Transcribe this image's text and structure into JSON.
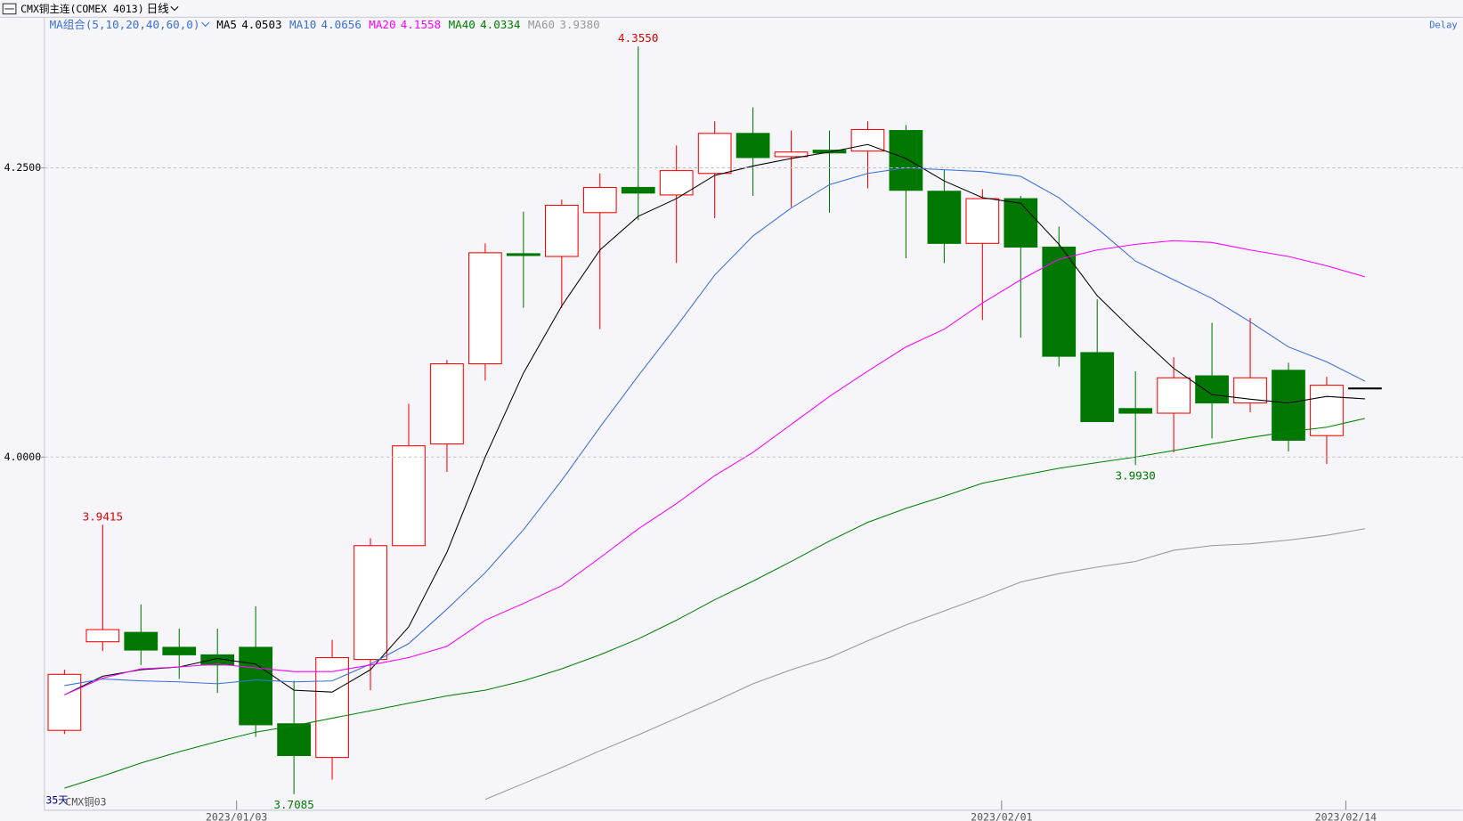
{
  "chart_data": {
    "type": "candlestick",
    "title": "CMX铜主连(COMEX 4013)",
    "period": "日线",
    "ma_label": "MA组合(5,10,20,40,60,0)",
    "delay": "Delay",
    "footer": [
      "35天",
      "CMX铜03"
    ],
    "categories": [
      null,
      null,
      null,
      null,
      null,
      "2023/01/03",
      null,
      null,
      null,
      null,
      null,
      null,
      null,
      null,
      null,
      null,
      null,
      null,
      null,
      null,
      null,
      null,
      null,
      null,
      null,
      "2023/02/01",
      null,
      null,
      null,
      null,
      null,
      null,
      null,
      null,
      "2023/02/14"
    ],
    "open": [
      3.7637,
      3.8403,
      3.8484,
      3.8355,
      3.829,
      3.8355,
      3.7694,
      3.7403,
      3.825,
      3.9234,
      4.0113,
      4.0806,
      4.1758,
      4.1734,
      4.2113,
      4.2331,
      4.2266,
      4.2452,
      4.2798,
      4.2597,
      4.2653,
      4.2645,
      4.2823,
      4.2298,
      4.1847,
      4.2234,
      4.1815,
      4.0903,
      4.0419,
      4.0379,
      4.0702,
      4.0468,
      4.075,
      4.0185,
      4.0597
    ],
    "high": [
      3.8161,
      3.9415,
      3.8726,
      3.8516,
      3.8516,
      3.871,
      3.8065,
      3.8419,
      3.9298,
      4.046,
      4.0839,
      4.1847,
      4.2121,
      4.2226,
      4.2452,
      4.355,
      4.2694,
      4.2903,
      4.3024,
      4.2823,
      4.2823,
      4.2903,
      4.2871,
      4.2484,
      4.2315,
      4.2258,
      4.1992,
      4.1363,
      4.0742,
      4.0863,
      4.1161,
      4.1202,
      4.0815,
      4.0694,
      4.0597
    ],
    "low": [
      3.7605,
      3.8323,
      3.8202,
      3.8081,
      3.796,
      3.7581,
      3.7085,
      3.721,
      3.7984,
      3.9234,
      3.9871,
      4.0661,
      4.129,
      4.129,
      4.1105,
      4.2048,
      4.1677,
      4.2065,
      4.2258,
      4.2161,
      4.2113,
      4.2323,
      4.1718,
      4.1677,
      4.1185,
      4.1032,
      4.0782,
      4.0306,
      3.993,
      4.004,
      4.0161,
      4.0387,
      4.0048,
      3.994,
      4.0597
    ],
    "close": [
      3.8121,
      3.8508,
      3.8331,
      3.829,
      3.8202,
      3.7685,
      3.7419,
      3.8266,
      3.9234,
      4.0097,
      4.0806,
      4.1766,
      4.1742,
      4.2177,
      4.2331,
      4.2282,
      4.2476,
      4.2798,
      4.2589,
      4.2637,
      4.2629,
      4.2831,
      4.2306,
      4.1847,
      4.2234,
      4.1815,
      4.0871,
      4.0306,
      4.0379,
      4.0685,
      4.0468,
      4.0685,
      4.0145,
      4.0621,
      4.0597
    ],
    "up_color": "#ff0000",
    "down_color": "#007800",
    "series": [
      {
        "name": "MA5",
        "color": "#000000",
        "last_value_label": "4.0503",
        "values": [
          3.7944,
          3.8105,
          3.8161,
          3.8185,
          3.8258,
          3.821,
          3.7984,
          3.7968,
          3.8161,
          3.8532,
          3.9177,
          4.0,
          4.0726,
          4.1306,
          4.179,
          4.2081,
          4.2234,
          4.2435,
          4.2516,
          4.2581,
          4.2637,
          4.2702,
          4.2581,
          4.2387,
          4.2242,
          4.2194,
          4.1839,
          4.1395,
          4.1073,
          4.0766,
          4.054,
          4.05,
          4.0468,
          4.0524,
          4.0503
        ]
      },
      {
        "name": "MA10",
        "color": "#3a6fd8",
        "last_value_label": "4.0656",
        "values": [
          3.8024,
          3.8081,
          3.8065,
          3.8056,
          3.804,
          3.8073,
          3.8056,
          3.8065,
          3.821,
          3.8387,
          3.8685,
          3.9,
          3.9371,
          3.9798,
          4.0258,
          4.0702,
          4.1129,
          4.1573,
          4.1911,
          4.2153,
          4.2355,
          4.2452,
          4.25,
          4.2484,
          4.2468,
          4.2427,
          4.2242,
          4.1976,
          4.1694,
          4.1532,
          4.1371,
          4.1169,
          4.0952,
          4.0823,
          4.0656
        ]
      },
      {
        "name": "MA20",
        "color": "#ff00ff",
        "last_value_label": "4.1558",
        "values": [
          3.7944,
          3.8089,
          3.8169,
          3.8185,
          3.821,
          3.8177,
          3.8145,
          3.8145,
          3.8202,
          3.8266,
          3.8363,
          3.8589,
          3.8734,
          3.8887,
          3.9129,
          3.9379,
          3.9597,
          3.9839,
          4.004,
          4.0282,
          4.0524,
          4.0742,
          4.0952,
          4.1105,
          4.1331,
          4.1532,
          4.171,
          4.179,
          4.1839,
          4.1871,
          4.1855,
          4.179,
          4.1734,
          4.1653,
          4.1558
        ]
      },
      {
        "name": "MA40",
        "color": "#008000",
        "last_value_label": "4.0334",
        "values": [
          3.7137,
          3.7242,
          3.7355,
          3.7452,
          3.754,
          3.7621,
          3.7677,
          3.7742,
          3.7806,
          3.7871,
          3.7935,
          3.7984,
          3.8065,
          3.8169,
          3.829,
          3.8427,
          3.8589,
          3.8766,
          3.8927,
          3.9097,
          3.9274,
          3.9435,
          3.9556,
          3.9661,
          3.9774,
          3.9839,
          3.9903,
          3.9952,
          4.0,
          4.0056,
          4.0113,
          4.0169,
          4.0218,
          4.0258,
          4.0334
        ]
      },
      {
        "name": "MA60",
        "color": "#999999",
        "last_value_label": "3.9380",
        "values": [
          null,
          null,
          null,
          null,
          null,
          null,
          null,
          null,
          null,
          null,
          null,
          3.704,
          3.7177,
          3.7315,
          3.746,
          3.7597,
          3.7742,
          3.7887,
          3.804,
          3.8161,
          3.8266,
          3.8411,
          3.8548,
          3.8669,
          3.879,
          3.8919,
          3.8992,
          3.9048,
          3.9097,
          3.9194,
          3.9234,
          3.925,
          3.9282,
          3.9323,
          3.938
        ]
      }
    ],
    "annotations": [
      {
        "label": "4.3550",
        "value": 4.355
      },
      {
        "label": "3.9415",
        "value": 3.9415
      },
      {
        "label": "3.7085",
        "value": 3.7085
      },
      {
        "label": "3.9930",
        "value": 3.993
      }
    ],
    "ylim": [
      3.695,
      4.379
    ],
    "yticks": [
      {
        "value": 4.25,
        "label": "4.2500"
      },
      {
        "value": 4,
        "label": "4.0000"
      }
    ],
    "grid": true
  }
}
